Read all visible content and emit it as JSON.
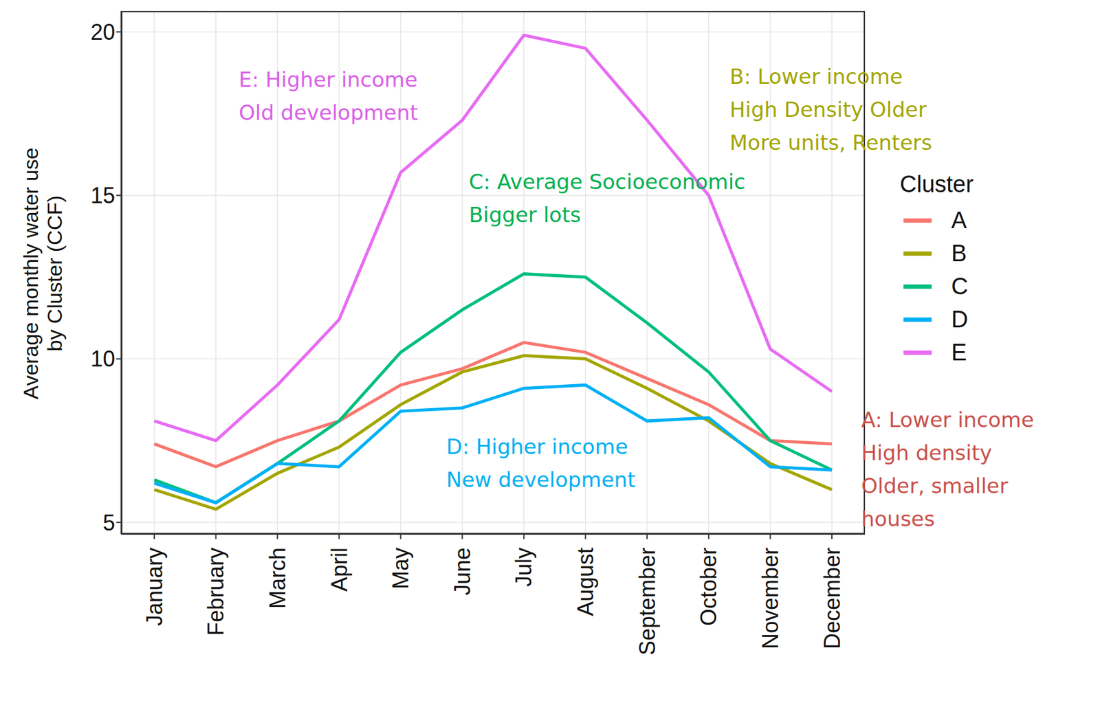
{
  "chart_data": {
    "type": "line",
    "y_label": "Average monthly water use\nby Cluster (CCF)",
    "categories": [
      "January",
      "February",
      "March",
      "April",
      "May",
      "June",
      "July",
      "August",
      "September",
      "October",
      "November",
      "December"
    ],
    "series": [
      {
        "name": "A",
        "color": "#F8766D",
        "values": [
          7.4,
          6.7,
          7.5,
          8.1,
          9.2,
          9.7,
          10.5,
          10.2,
          9.4,
          8.6,
          7.5,
          7.4
        ]
      },
      {
        "name": "B",
        "color": "#A3A500",
        "values": [
          6.0,
          5.4,
          6.5,
          7.3,
          8.6,
          9.6,
          10.1,
          10.0,
          9.1,
          8.1,
          6.8,
          6.0
        ]
      },
      {
        "name": "C",
        "color": "#00BF7D",
        "values": [
          6.3,
          5.6,
          6.8,
          8.1,
          10.2,
          11.5,
          12.6,
          12.5,
          11.1,
          9.6,
          7.5,
          6.6
        ]
      },
      {
        "name": "D",
        "color": "#00B0F6",
        "values": [
          6.2,
          5.6,
          6.8,
          6.7,
          8.4,
          8.5,
          9.1,
          9.2,
          8.1,
          8.2,
          6.7,
          6.6
        ]
      },
      {
        "name": "E",
        "color": "#E76BF3",
        "values": [
          8.1,
          7.5,
          9.2,
          11.2,
          15.7,
          17.3,
          19.9,
          19.5,
          17.3,
          15.0,
          10.3,
          9.0
        ]
      }
    ],
    "ylim": [
      4.64,
      20.64
    ],
    "yticks": [
      5,
      10,
      15,
      20
    ],
    "grid": true,
    "legend": "right",
    "legend_title": "Cluster",
    "annotations": [
      {
        "lines": [
          "E: Higher income",
          "Old development"
        ],
        "color": "#DA5FE8"
      },
      {
        "lines": [
          "B: Lower income",
          "High Density Older",
          "More units, Renters"
        ],
        "color": "#A3A500"
      },
      {
        "lines": [
          "C: Average Socioeconomic",
          "Bigger lots"
        ],
        "color": "#00B050"
      },
      {
        "lines": [
          "D: Higher income",
          "New development"
        ],
        "color": "#00B0F0"
      },
      {
        "lines": [
          "A: Lower income",
          "High density",
          "Older, smaller",
          "houses"
        ],
        "color": "#C9504A"
      }
    ]
  }
}
